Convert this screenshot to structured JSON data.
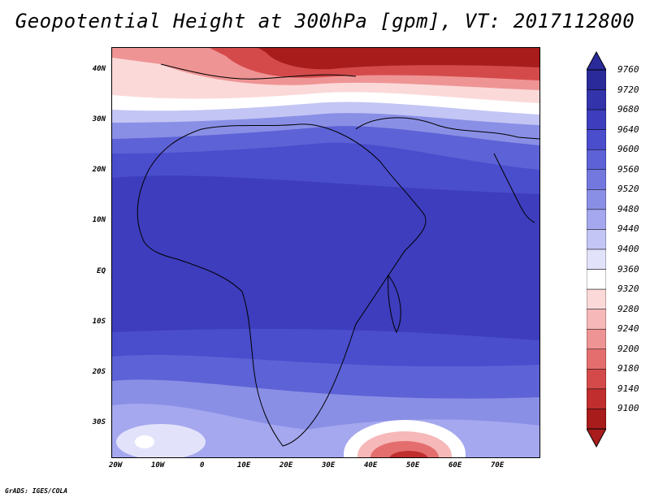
{
  "title": "Geopotential Height at 300hPa [gpm], VT: 2017112800",
  "credit": "GrADS: IGES/COLA",
  "lat_labels": [
    "40N",
    "30N",
    "20N",
    "10N",
    "EQ",
    "10S",
    "20S",
    "30S"
  ],
  "lon_labels": [
    "20W",
    "10W",
    "0",
    "10E",
    "20E",
    "30E",
    "40E",
    "50E",
    "60E",
    "70E"
  ],
  "colorbar": {
    "levels": [
      "9760",
      "9720",
      "9680",
      "9640",
      "9600",
      "9560",
      "9520",
      "9480",
      "9440",
      "9400",
      "9360",
      "9320",
      "9280",
      "9240",
      "9200",
      "9180",
      "9140",
      "9100"
    ],
    "colors": [
      "#2a2a9a",
      "#3333ab",
      "#3d3dbd",
      "#4a4dcc",
      "#5d62d6",
      "#7378df",
      "#8a8fe6",
      "#a5a8ee",
      "#c3c5f4",
      "#e2e3fb",
      "#ffffff",
      "#fbd9d9",
      "#f6b8b8",
      "#ef9494",
      "#e46e6e",
      "#d44a4a",
      "#c12e2e",
      "#a81c1c"
    ]
  }
}
